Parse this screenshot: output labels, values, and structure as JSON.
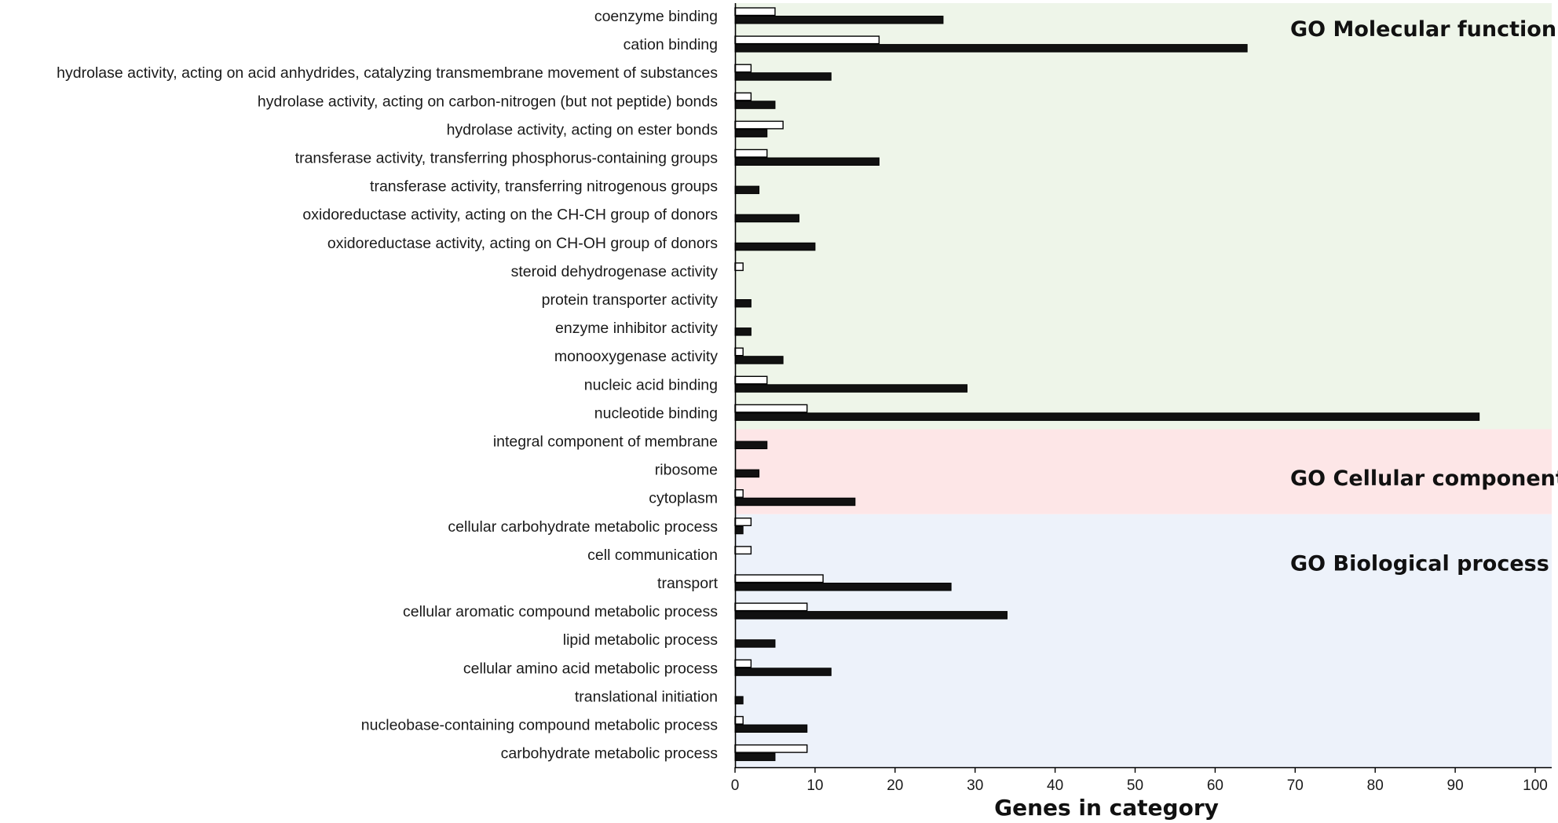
{
  "chart_data": {
    "type": "bar",
    "orientation": "horizontal",
    "xlabel": "Genes in category",
    "xlim": [
      0,
      100
    ],
    "xticks": [
      0,
      10,
      20,
      30,
      40,
      50,
      60,
      70,
      80,
      90,
      100
    ],
    "legend": null,
    "series": [
      {
        "name": "white bars",
        "fill": "#ffffff",
        "stroke": "#000000"
      },
      {
        "name": "black bars",
        "fill": "#111111",
        "stroke": "#000000"
      }
    ],
    "sections": [
      {
        "name": "GO Molecular function",
        "color": "#eef5e9"
      },
      {
        "name": "GO Cellular component",
        "color": "#fde6e7"
      },
      {
        "name": "GO Biological process",
        "color": "#edf2fa"
      }
    ],
    "categories": [
      {
        "label": "coenzyme binding",
        "section": 0,
        "white": 5,
        "black": 26
      },
      {
        "label": "cation binding",
        "section": 0,
        "white": 18,
        "black": 64
      },
      {
        "label": "hydrolase activity, acting on acid anhydrides, catalyzing transmembrane movement of substances",
        "section": 0,
        "white": 2,
        "black": 12
      },
      {
        "label": "hydrolase activity, acting on carbon-nitrogen (but not peptide) bonds",
        "section": 0,
        "white": 2,
        "black": 5
      },
      {
        "label": "hydrolase activity, acting on ester bonds",
        "section": 0,
        "white": 6,
        "black": 4
      },
      {
        "label": "transferase activity, transferring phosphorus-containing groups",
        "section": 0,
        "white": 4,
        "black": 18
      },
      {
        "label": "transferase activity, transferring nitrogenous groups",
        "section": 0,
        "white": 0,
        "black": 3
      },
      {
        "label": "oxidoreductase activity, acting on the CH-CH group of donors",
        "section": 0,
        "white": 0,
        "black": 8
      },
      {
        "label": "oxidoreductase activity, acting on CH-OH group of donors",
        "section": 0,
        "white": 0,
        "black": 10
      },
      {
        "label": "steroid dehydrogenase activity",
        "section": 0,
        "white": 1,
        "black": 0
      },
      {
        "label": "protein transporter activity",
        "section": 0,
        "white": 0,
        "black": 2
      },
      {
        "label": "enzyme inhibitor activity",
        "section": 0,
        "white": 0,
        "black": 2
      },
      {
        "label": "monooxygenase activity",
        "section": 0,
        "white": 1,
        "black": 6
      },
      {
        "label": "nucleic acid binding",
        "section": 0,
        "white": 4,
        "black": 29
      },
      {
        "label": "nucleotide binding",
        "section": 0,
        "white": 9,
        "black": 93
      },
      {
        "label": "integral component of membrane",
        "section": 1,
        "white": 0,
        "black": 4
      },
      {
        "label": "ribosome",
        "section": 1,
        "white": 0,
        "black": 3
      },
      {
        "label": "cytoplasm",
        "section": 1,
        "white": 1,
        "black": 15
      },
      {
        "label": "cellular carbohydrate metabolic process",
        "section": 2,
        "white": 2,
        "black": 1
      },
      {
        "label": "cell communication",
        "section": 2,
        "white": 2,
        "black": 0
      },
      {
        "label": "transport",
        "section": 2,
        "white": 11,
        "black": 27
      },
      {
        "label": "cellular aromatic compound metabolic process",
        "section": 2,
        "white": 9,
        "black": 34
      },
      {
        "label": "lipid metabolic process",
        "section": 2,
        "white": 0,
        "black": 5
      },
      {
        "label": "cellular amino acid metabolic process",
        "section": 2,
        "white": 2,
        "black": 12
      },
      {
        "label": "translational initiation",
        "section": 2,
        "white": 0,
        "black": 1
      },
      {
        "label": "nucleobase-containing compound metabolic process",
        "section": 2,
        "white": 1,
        "black": 9
      },
      {
        "label": "carbohydrate metabolic process",
        "section": 2,
        "white": 9,
        "black": 5
      }
    ]
  }
}
